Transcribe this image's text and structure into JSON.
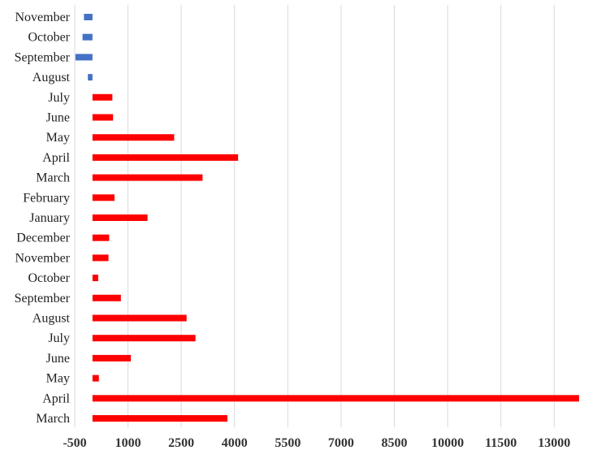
{
  "chart_data": {
    "type": "bar",
    "orientation": "horizontal",
    "categories": [
      "March",
      "April",
      "May",
      "June",
      "July",
      "August",
      "September",
      "October",
      "November",
      "December",
      "January",
      "February",
      "March",
      "April",
      "May",
      "June",
      "July",
      "August",
      "September",
      "October",
      "November"
    ],
    "values": [
      3800,
      13700,
      180,
      1080,
      2900,
      2650,
      800,
      160,
      450,
      470,
      1550,
      620,
      3100,
      4100,
      2300,
      580,
      560,
      -130,
      -480,
      -280,
      -240
    ],
    "colors": [
      "#ff0000",
      "#ff0000",
      "#ff0000",
      "#ff0000",
      "#ff0000",
      "#ff0000",
      "#ff0000",
      "#ff0000",
      "#ff0000",
      "#ff0000",
      "#ff0000",
      "#ff0000",
      "#ff0000",
      "#ff0000",
      "#ff0000",
      "#ff0000",
      "#ff0000",
      "#4472c4",
      "#4472c4",
      "#4472c4",
      "#4472c4"
    ],
    "xlim": [
      -500,
      14000
    ],
    "xticks": [
      -500,
      1000,
      2500,
      4000,
      5500,
      7000,
      8500,
      10000,
      11500,
      13000
    ],
    "xtick_labels": [
      "-500",
      "1000",
      "2500",
      "4000",
      "5500",
      "7000",
      "8500",
      "10000",
      "11500",
      "13000"
    ],
    "grid": true,
    "legend": "none",
    "title": "",
    "xlabel": "",
    "ylabel": ""
  }
}
